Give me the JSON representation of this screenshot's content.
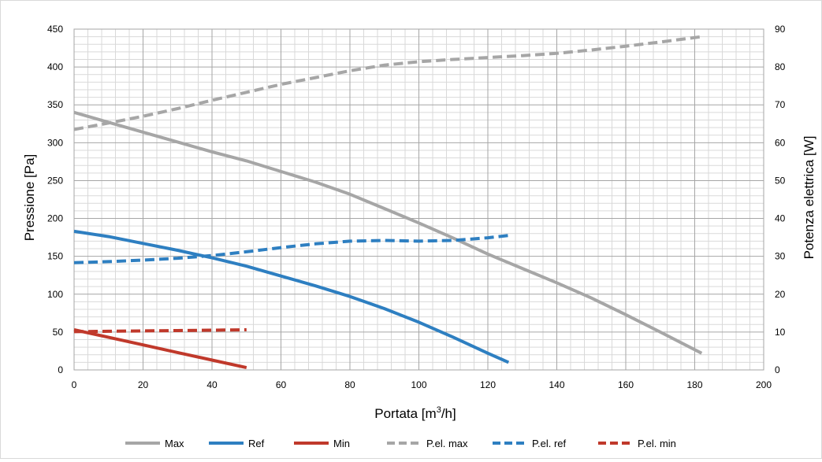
{
  "chart_data": {
    "type": "line",
    "xlabel": "Portata [m",
    "xlabel_sup": "3",
    "xlabel_end": "/h]",
    "ylabel_left": "Pressione [Pa]",
    "ylabel_right": "Potenza elettrica [W]",
    "xlim": [
      0,
      200
    ],
    "ylim_left": [
      0,
      450
    ],
    "ylim_right": [
      0,
      90
    ],
    "x_ticks": [
      "0",
      "20",
      "40",
      "60",
      "80",
      "100",
      "120",
      "140",
      "160",
      "180",
      "200"
    ],
    "y_left_ticks": [
      "0",
      "50",
      "100",
      "150",
      "200",
      "250",
      "300",
      "350",
      "400",
      "450"
    ],
    "y_right_ticks": [
      "0",
      "10",
      "20",
      "30",
      "40",
      "50",
      "60",
      "70",
      "80",
      "90"
    ],
    "grid": true,
    "legend_position": "bottom",
    "series": [
      {
        "name": "Max",
        "axis": "left",
        "style": "solid",
        "color": "#a6a6a6",
        "x": [
          0,
          10,
          20,
          30,
          40,
          50,
          60,
          70,
          80,
          90,
          100,
          110,
          120,
          130,
          140,
          150,
          160,
          170,
          182
        ],
        "y": [
          340,
          327,
          314,
          301,
          288,
          276,
          262,
          248,
          232,
          213,
          194,
          174,
          153,
          134,
          115,
          95,
          73,
          50,
          22
        ]
      },
      {
        "name": "Ref",
        "axis": "left",
        "style": "solid",
        "color": "#2e7fc1",
        "x": [
          0,
          10,
          20,
          30,
          40,
          50,
          60,
          70,
          80,
          90,
          100,
          110,
          120,
          126
        ],
        "y": [
          183,
          176,
          167,
          158,
          148,
          137,
          124,
          111,
          97,
          81,
          63,
          43,
          22,
          10
        ]
      },
      {
        "name": "Min",
        "axis": "left",
        "style": "solid",
        "color": "#c0392b",
        "x": [
          0,
          10,
          20,
          30,
          40,
          50
        ],
        "y": [
          53,
          43,
          33,
          23,
          13,
          3
        ]
      },
      {
        "name": "P.el. max",
        "axis": "right",
        "style": "dashed",
        "color": "#a6a6a6",
        "x": [
          0,
          10,
          20,
          30,
          40,
          50,
          60,
          70,
          80,
          90,
          100,
          110,
          120,
          130,
          140,
          150,
          160,
          170,
          182
        ],
        "y": [
          63.5,
          65.2,
          67.0,
          69.0,
          71.2,
          73.3,
          75.4,
          77.2,
          79.0,
          80.5,
          81.4,
          82.0,
          82.5,
          83.0,
          83.6,
          84.5,
          85.5,
          86.6,
          88.0
        ]
      },
      {
        "name": "P.el. ref",
        "axis": "right",
        "style": "dashed",
        "color": "#2e7fc1",
        "x": [
          0,
          10,
          20,
          30,
          40,
          50,
          60,
          70,
          80,
          90,
          100,
          110,
          120,
          126
        ],
        "y": [
          28.3,
          28.6,
          29.0,
          29.5,
          30.2,
          31.2,
          32.3,
          33.3,
          34.0,
          34.2,
          34.0,
          34.2,
          34.9,
          35.5
        ]
      },
      {
        "name": "P.el. min",
        "axis": "right",
        "style": "dashed",
        "color": "#c0392b",
        "x": [
          0,
          10,
          20,
          30,
          40,
          50
        ],
        "y": [
          10.1,
          10.2,
          10.3,
          10.4,
          10.5,
          10.6
        ]
      }
    ]
  }
}
